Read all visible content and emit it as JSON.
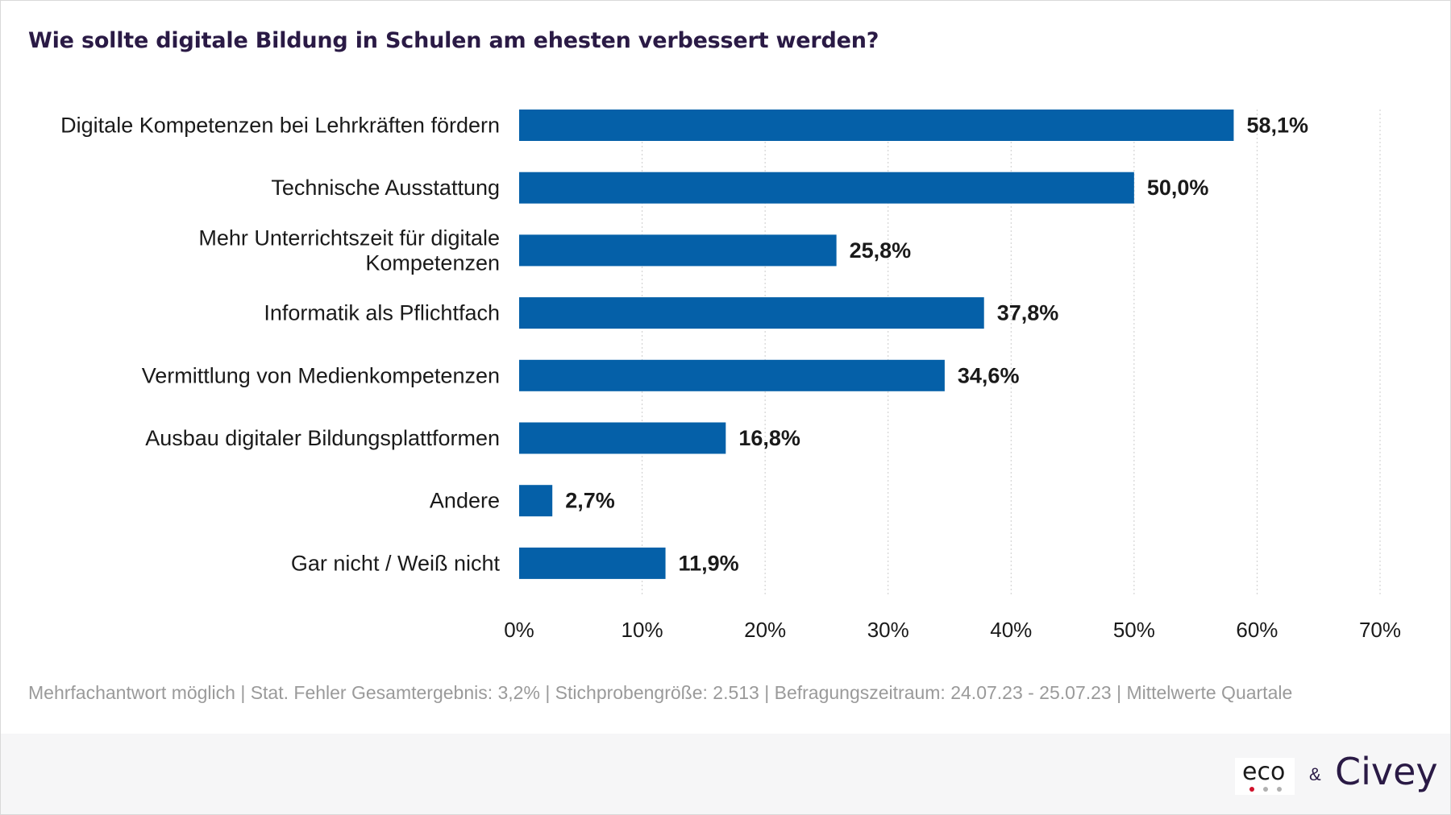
{
  "chart_data": {
    "type": "bar",
    "orientation": "horizontal",
    "title": "Wie sollte digitale Bildung in Schulen am ehesten verbessert werden?",
    "categories": [
      [
        "Digitale Kompetenzen bei Lehrkräften fördern"
      ],
      [
        "Technische Ausstattung"
      ],
      [
        "Mehr Unterrichtszeit für digitale",
        "Kompetenzen"
      ],
      [
        "Informatik als Pflichtfach"
      ],
      [
        "Vermittlung von Medienkompetenzen"
      ],
      [
        "Ausbau digitaler Bildungsplattformen"
      ],
      [
        "Andere"
      ],
      [
        "Gar nicht / Weiß nicht"
      ]
    ],
    "values": [
      58.1,
      50.0,
      25.8,
      37.8,
      34.6,
      16.8,
      2.7,
      11.9
    ],
    "value_labels": [
      "58,1%",
      "50,0%",
      "25,8%",
      "37,8%",
      "34,6%",
      "16,8%",
      "2,7%",
      "11,9%"
    ],
    "xlim": [
      0,
      70
    ],
    "xticks": [
      0,
      10,
      20,
      30,
      40,
      50,
      60,
      70
    ],
    "xtick_labels": [
      "0%",
      "10%",
      "20%",
      "30%",
      "40%",
      "50%",
      "60%",
      "70%"
    ],
    "xlabel": "",
    "ylabel": "",
    "grid": "vertical dotted",
    "bar_color": "#0560a8"
  },
  "footnote": "Mehrfachantwort möglich | Stat. Fehler Gesamtergebnis: 3,2% | Stichprobengröße: 2.513 | Befragungszeitraum: 24.07.23 - 25.07.23 | Mittelwerte Quartale",
  "footer": {
    "logo_eco": "eco",
    "ampersand": "&",
    "logo_civey": "Civey"
  },
  "colors": {
    "title": "#2a1a45",
    "gridline": "#cccccc",
    "footnote": "#9a9a9a",
    "eco_dot_red": "#d0112b",
    "eco_dot_gray": "#b0b0b0"
  }
}
